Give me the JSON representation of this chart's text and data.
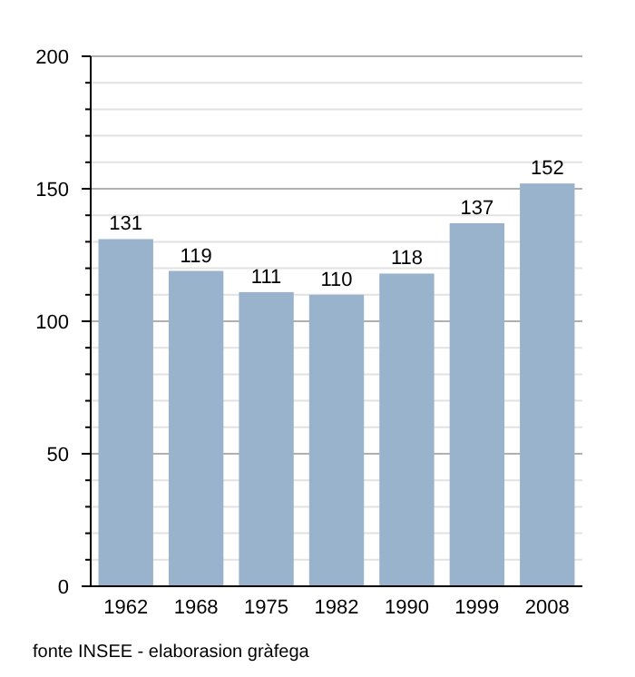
{
  "chart_data": {
    "type": "bar",
    "categories": [
      "1962",
      "1968",
      "1975",
      "1982",
      "1990",
      "1999",
      "2008"
    ],
    "values": [
      131,
      119,
      111,
      110,
      118,
      137,
      152
    ],
    "color": "#9ab3cc",
    "data_labels": true,
    "ylim": [
      0,
      200
    ],
    "yticks": [
      0,
      {
        "value": 10,
        "label": null
      },
      {
        "value": 20,
        "label": null
      },
      {
        "value": 30,
        "label": null
      },
      {
        "value": 40,
        "label": null
      },
      50,
      {
        "value": 60,
        "label": null
      },
      {
        "value": 70,
        "label": null
      },
      {
        "value": 80,
        "label": null
      },
      {
        "value": 90,
        "label": null
      },
      100,
      {
        "value": 110,
        "label": null
      },
      {
        "value": 120,
        "label": null
      },
      {
        "value": 130,
        "label": null
      },
      {
        "value": 140,
        "label": null
      },
      150,
      {
        "value": 160,
        "label": null
      },
      {
        "value": 170,
        "label": null
      },
      {
        "value": 180,
        "label": null
      },
      {
        "value": 190,
        "label": null
      },
      200
    ],
    "grid": true,
    "annotations": [
      "fonte INSEE - elaborasion gràfega"
    ]
  }
}
